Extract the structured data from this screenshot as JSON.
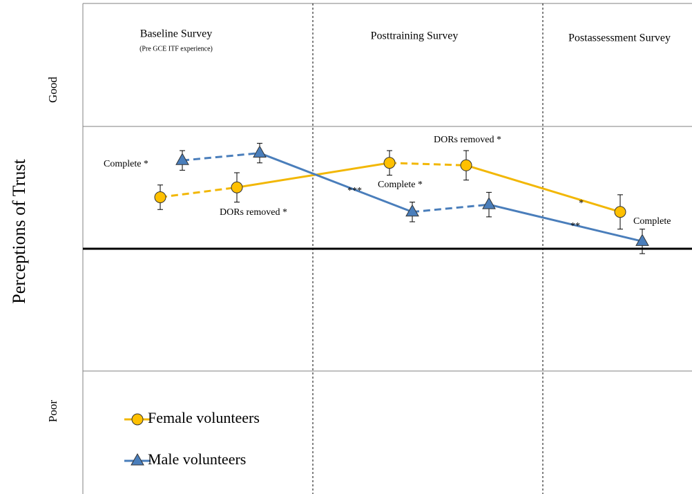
{
  "chart_data": {
    "type": "line",
    "y_axis_label": "Perceptions of Trust",
    "y_top_label": "Good",
    "y_bottom_label": "Poor",
    "column_titles": [
      "Baseline Survey",
      "Posttraining Survey",
      "Postassessment Survey"
    ],
    "column_subtitle": "(Pre GCE ITF experience)",
    "ylim": [
      -1,
      1
    ],
    "series": [
      {
        "name": "Female volunteers",
        "color": "#ffc000",
        "line_color": "#f2b705",
        "marker": "circle",
        "values": [
          0.21,
          0.25,
          0.35,
          0.34,
          0.15
        ],
        "errors": [
          0.05,
          0.06,
          0.05,
          0.06,
          0.07
        ],
        "segment_styles": [
          "dashed",
          "solid",
          "dashed",
          "solid"
        ]
      },
      {
        "name": "Male volunteers",
        "color": "#4a7ebb",
        "line_color": "#4a7ebb",
        "marker": "triangle",
        "values": [
          0.36,
          0.39,
          0.15,
          0.18,
          0.03
        ],
        "errors": [
          0.04,
          0.04,
          0.04,
          0.05,
          0.05
        ],
        "segment_styles": [
          "dashed",
          "solid",
          "dashed",
          "solid"
        ]
      }
    ],
    "annotations": [
      "Complete *",
      "DORs removed *",
      "***",
      "Complete *",
      "DORs removed *",
      "*",
      "**",
      "Complete"
    ]
  }
}
